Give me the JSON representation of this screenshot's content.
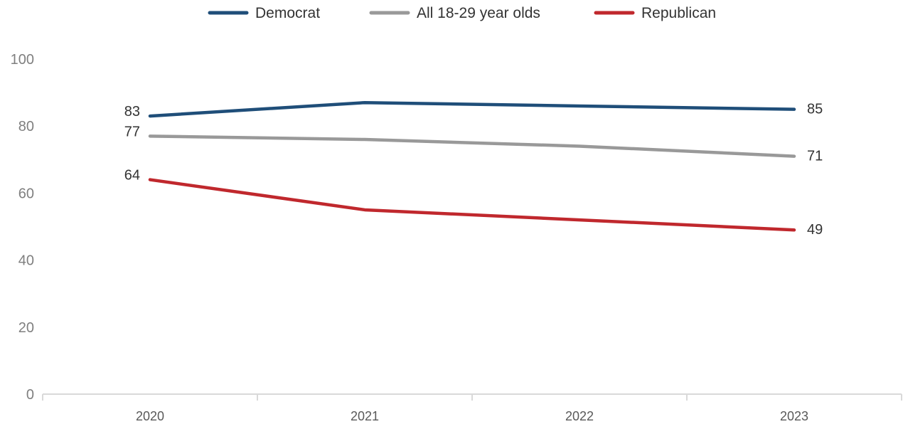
{
  "chart_data": {
    "type": "line",
    "categories": [
      "2020",
      "2021",
      "2022",
      "2023"
    ],
    "series": [
      {
        "name": "Democrat",
        "color": "#1f4e79",
        "values": [
          83,
          87,
          86,
          85
        ],
        "labels": [
          {
            "index": 0,
            "text": "83"
          },
          {
            "index": 3,
            "text": "85"
          }
        ]
      },
      {
        "name": "All 18-29 year olds",
        "color": "#999999",
        "values": [
          77,
          76,
          74,
          71
        ],
        "labels": [
          {
            "index": 0,
            "text": "77"
          },
          {
            "index": 3,
            "text": "71"
          }
        ]
      },
      {
        "name": "Republican",
        "color": "#c0282d",
        "values": [
          64,
          55,
          52,
          49
        ],
        "labels": [
          {
            "index": 0,
            "text": "64"
          },
          {
            "index": 3,
            "text": "49"
          }
        ]
      }
    ],
    "yticks": [
      "0",
      "20",
      "40",
      "60",
      "80",
      "100"
    ],
    "ylim": [
      0,
      100
    ],
    "grid": false,
    "legend_position": "top-center"
  }
}
